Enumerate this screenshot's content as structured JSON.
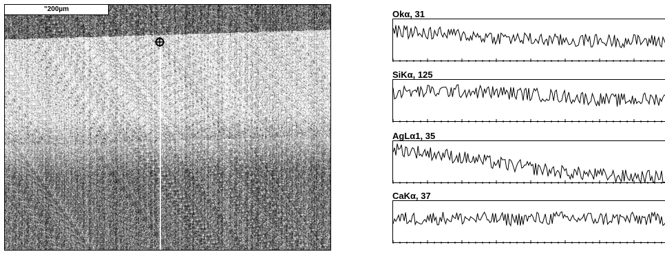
{
  "micrograph": {
    "scale_label": "\"200µm",
    "marker_icon": "crosshair-circle-icon"
  },
  "profiles": [
    {
      "label": "Okα, 31",
      "trend": [
        0.72,
        0.65,
        0.56,
        0.5,
        0.5,
        0.48
      ]
    },
    {
      "label": "SiKα, 125",
      "trend": [
        0.7,
        0.74,
        0.7,
        0.62,
        0.52,
        0.56
      ]
    },
    {
      "label": "AgLα1, 35",
      "trend": [
        0.82,
        0.66,
        0.46,
        0.28,
        0.18,
        0.15
      ]
    },
    {
      "label": "CaKα, 37",
      "trend": [
        0.58,
        0.6,
        0.57,
        0.6,
        0.58,
        0.58
      ]
    }
  ]
}
